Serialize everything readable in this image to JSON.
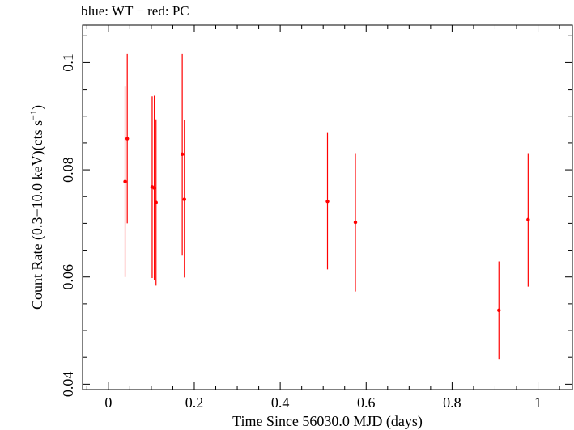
{
  "chart_data": {
    "type": "scatter",
    "title": "blue: WT − red: PC",
    "xlabel": "Time Since 56030.0 MJD (days)",
    "ylabel_main": "Count Rate (0.3−10.0 keV)(cts s",
    "ylabel_sup": "−1",
    "ylabel_close": ")",
    "xlim": [
      -0.06,
      1.08
    ],
    "ylim": [
      0.039,
      0.107
    ],
    "xticks": [
      0,
      0.2,
      0.4,
      0.6,
      0.8,
      1
    ],
    "xtick_labels": [
      "0",
      "0.2",
      "0.4",
      "0.6",
      "0.8",
      "1"
    ],
    "yticks": [
      0.04,
      0.06,
      0.08,
      0.1
    ],
    "ytick_labels": [
      "0.04",
      "0.06",
      "0.08",
      "0.1"
    ],
    "grid": false,
    "series": [
      {
        "color": "#ff0000",
        "points": [
          {
            "x": 0.039,
            "y": 0.0778,
            "ylo": 0.06,
            "yhi": 0.0955
          },
          {
            "x": 0.044,
            "y": 0.0858,
            "ylo": 0.07,
            "yhi": 0.1016
          },
          {
            "x": 0.102,
            "y": 0.0768,
            "ylo": 0.0598,
            "yhi": 0.0937
          },
          {
            "x": 0.107,
            "y": 0.0766,
            "ylo": 0.0594,
            "yhi": 0.0938
          },
          {
            "x": 0.111,
            "y": 0.0739,
            "ylo": 0.0584,
            "yhi": 0.0894
          },
          {
            "x": 0.172,
            "y": 0.0829,
            "ylo": 0.064,
            "yhi": 0.1016
          },
          {
            "x": 0.177,
            "y": 0.0745,
            "ylo": 0.0599,
            "yhi": 0.0893
          },
          {
            "x": 0.51,
            "y": 0.0741,
            "ylo": 0.0614,
            "yhi": 0.087
          },
          {
            "x": 0.575,
            "y": 0.0702,
            "ylo": 0.0573,
            "yhi": 0.0831
          },
          {
            "x": 0.909,
            "y": 0.0538,
            "ylo": 0.0447,
            "yhi": 0.0629
          },
          {
            "x": 0.977,
            "y": 0.0707,
            "ylo": 0.0582,
            "yhi": 0.0831
          }
        ]
      }
    ]
  }
}
